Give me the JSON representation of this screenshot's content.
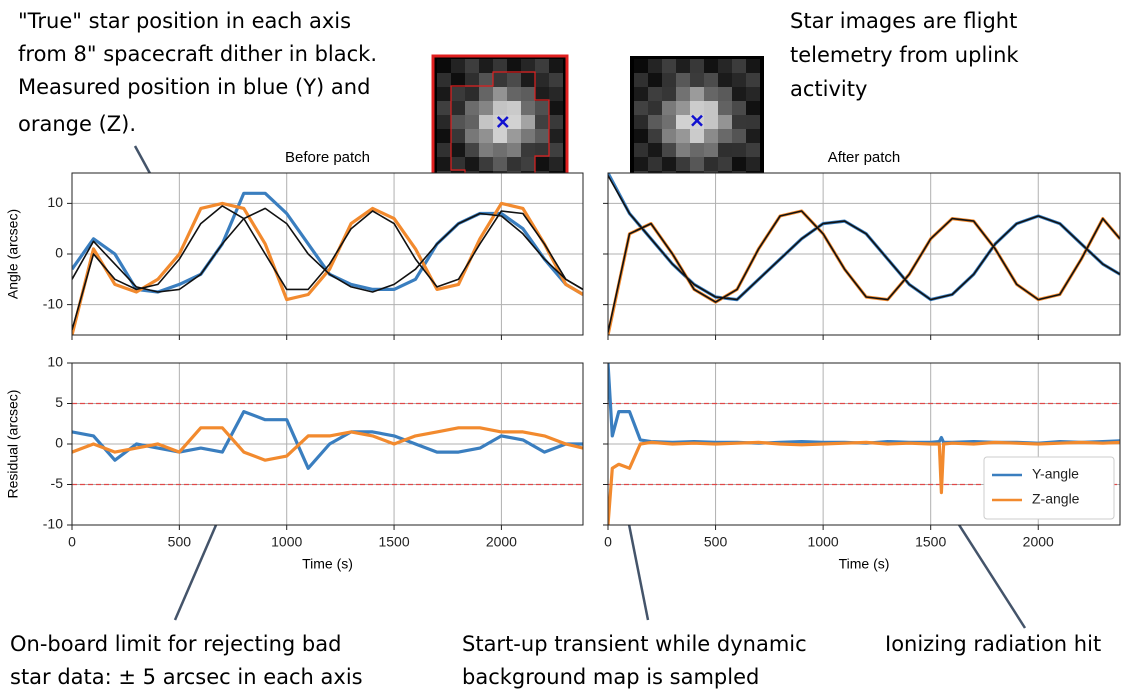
{
  "annotations": [
    {
      "lines": [
        "\"True\" star position in each axis",
        "from 8\" spacecraft dither in black.",
        "Measured position in blue (Y) and",
        "orange (Z)."
      ]
    },
    {
      "lines": [
        "Star images are flight",
        "telemetry from uplink",
        "activity"
      ]
    },
    {
      "lines": [
        "On-board limit for rejecting bad",
        "star data: ± 5 arcsec in each axis"
      ]
    },
    {
      "lines": [
        "Start-up transient while dynamic",
        "background map is sampled"
      ]
    },
    {
      "lines": [
        "Ionizing radiation hit"
      ]
    }
  ],
  "chart_data": [
    {
      "type": "line",
      "title": "Before patch",
      "ylabel": "Angle (arcsec)",
      "x": [
        0,
        100,
        200,
        300,
        400,
        500,
        600,
        700,
        800,
        900,
        1000,
        1100,
        1200,
        1300,
        1400,
        1500,
        1600,
        1700,
        1800,
        1900,
        2000,
        2100,
        2200,
        2300,
        2380
      ],
      "xlim": [
        0,
        2380
      ],
      "xticks": [
        0,
        500,
        1000,
        1500,
        2000
      ],
      "ylim": [
        -16,
        16
      ],
      "yticks": [
        -10,
        0,
        10
      ],
      "grid": true,
      "show_xtick_labels": false,
      "show_ytick_labels": true,
      "series": [
        {
          "color": "#3a7ebf",
          "values": [
            -3,
            3,
            0,
            -7,
            -7.5,
            -6,
            -4,
            2,
            12,
            12,
            8,
            2,
            -4,
            -6,
            -7,
            -7,
            -5,
            2,
            6,
            8,
            8,
            5,
            -1,
            -6,
            -8
          ]
        },
        {
          "color": "#f28a2e",
          "values": [
            -16,
            1,
            -6,
            -7.5,
            -5,
            0,
            9,
            10,
            9,
            2,
            -9,
            -8,
            -3,
            6,
            9,
            7,
            1,
            -7,
            -6,
            3,
            10,
            9,
            2,
            -6,
            -8
          ]
        },
        {
          "color": "#111111",
          "values": [
            -5,
            2.5,
            -2,
            -6.5,
            -7.5,
            -7,
            -4,
            2,
            7,
            9,
            6,
            0,
            -4,
            -6.5,
            -7.5,
            -6,
            -3,
            2,
            6,
            8,
            7.5,
            4,
            -1,
            -5,
            -7
          ]
        },
        {
          "color": "#111111",
          "values": [
            -15,
            0,
            -5,
            -7,
            -6,
            -1,
            6,
            9.5,
            7,
            0,
            -7,
            -7,
            -2,
            5,
            8.5,
            6,
            -1,
            -6.5,
            -5,
            2,
            8.5,
            8,
            2,
            -5,
            -7
          ]
        }
      ]
    },
    {
      "type": "line",
      "title": "After patch",
      "x": [
        0,
        100,
        200,
        300,
        400,
        500,
        600,
        700,
        800,
        900,
        1000,
        1100,
        1200,
        1300,
        1400,
        1500,
        1600,
        1700,
        1800,
        1900,
        2000,
        2100,
        2200,
        2300,
        2380
      ],
      "xlim": [
        0,
        2380
      ],
      "xticks": [
        0,
        500,
        1000,
        1500,
        2000
      ],
      "ylim": [
        -16,
        16
      ],
      "yticks": [
        -10,
        0,
        10
      ],
      "grid": true,
      "show_xtick_labels": false,
      "show_ytick_labels": false,
      "series": [
        {
          "color": "#3a7ebf",
          "values": [
            16,
            8,
            3,
            -2,
            -6,
            -8.5,
            -9,
            -5,
            -1,
            3,
            6,
            6.5,
            4,
            -1,
            -6,
            -9,
            -8,
            -4,
            2,
            6,
            7.5,
            6,
            2,
            -2,
            -4
          ]
        },
        {
          "color": "#f28a2e",
          "values": [
            -16,
            4,
            6,
            0,
            -7,
            -9.5,
            -7,
            1,
            7.5,
            8.5,
            4,
            -3,
            -8.5,
            -9,
            -4,
            3,
            7,
            6.5,
            1,
            -6,
            -9,
            -8,
            -1,
            7,
            3
          ]
        },
        {
          "color": "#111111",
          "values": [
            15.5,
            8,
            3,
            -2,
            -6,
            -8.5,
            -9,
            -5,
            -1,
            3,
            6,
            6.5,
            4,
            -1,
            -6,
            -9,
            -8,
            -4,
            2,
            6,
            7.5,
            6,
            2,
            -2,
            -4
          ]
        },
        {
          "color": "#111111",
          "values": [
            -15.5,
            4,
            6,
            0,
            -7,
            -9.5,
            -7,
            1,
            7.5,
            8.5,
            4,
            -3,
            -8.5,
            -9,
            -4,
            3,
            7,
            6.5,
            1,
            -6,
            -9,
            -8,
            -1,
            7,
            3
          ]
        }
      ]
    },
    {
      "type": "line",
      "xlabel": "Time (s)",
      "ylabel": "Residual (arcsec)",
      "x": [
        0,
        100,
        200,
        300,
        400,
        500,
        600,
        700,
        800,
        900,
        1000,
        1100,
        1200,
        1300,
        1400,
        1500,
        1600,
        1700,
        1800,
        1900,
        2000,
        2100,
        2200,
        2300,
        2380
      ],
      "xlim": [
        0,
        2380
      ],
      "xticks": [
        0,
        500,
        1000,
        1500,
        2000
      ],
      "ylim": [
        -10,
        10
      ],
      "yticks": [
        -10,
        -5,
        0,
        5,
        10
      ],
      "grid": true,
      "show_xtick_labels": true,
      "show_ytick_labels": true,
      "hlines": [
        {
          "value": 5,
          "color": "#e04848"
        },
        {
          "value": -5,
          "color": "#e04848"
        }
      ],
      "series": [
        {
          "color": "#3a7ebf",
          "values": [
            1.5,
            1,
            -2,
            0,
            -0.5,
            -1,
            -0.5,
            -1,
            4,
            3,
            3,
            -3,
            0,
            1.5,
            1.5,
            1,
            0,
            -1,
            -1,
            -0.5,
            1,
            0.5,
            -1,
            0,
            0
          ]
        },
        {
          "color": "#f28a2e",
          "values": [
            -1,
            0,
            -1,
            -0.5,
            0,
            -1,
            2,
            2,
            -1,
            -2,
            -1.5,
            1,
            1,
            1.5,
            1,
            0,
            1,
            1.5,
            2,
            2,
            1.5,
            1.5,
            1,
            0,
            -0.5
          ]
        }
      ]
    },
    {
      "type": "line",
      "xlabel": "Time (s)",
      "x": [
        0,
        20,
        50,
        100,
        150,
        200,
        300,
        400,
        500,
        600,
        700,
        800,
        900,
        1000,
        1100,
        1200,
        1300,
        1400,
        1500,
        1540,
        1550,
        1560,
        1600,
        1700,
        1800,
        1900,
        2000,
        2100,
        2200,
        2300,
        2380
      ],
      "xlim": [
        0,
        2380
      ],
      "xticks": [
        0,
        500,
        1000,
        1500,
        2000
      ],
      "ylim": [
        -10,
        10
      ],
      "yticks": [
        -10,
        -5,
        0,
        5,
        10
      ],
      "grid": true,
      "show_xtick_labels": true,
      "show_ytick_labels": false,
      "hlines": [
        {
          "value": 5,
          "color": "#e04848"
        },
        {
          "value": -5,
          "color": "#e04848"
        }
      ],
      "legend": "lower right",
      "series": [
        {
          "name": "Y-angle",
          "color": "#3a7ebf",
          "values": [
            10,
            1,
            4,
            4,
            0.5,
            0.3,
            0.2,
            0.3,
            0.2,
            0.2,
            0.1,
            0.2,
            0.3,
            0.2,
            0.2,
            0.1,
            0.3,
            0.2,
            0.2,
            0.3,
            0.8,
            0.2,
            0.2,
            0.3,
            0.2,
            0.2,
            0.1,
            0.3,
            0.2,
            0.3,
            0.4
          ]
        },
        {
          "name": "Z-angle",
          "color": "#f28a2e",
          "values": [
            -10,
            -3,
            -2.5,
            -3,
            0,
            0.2,
            0,
            0.1,
            0,
            0.1,
            0.2,
            0,
            -0.1,
            0,
            0.1,
            0.2,
            0,
            0.1,
            0,
            0,
            -6,
            0,
            0.1,
            0,
            0.2,
            0.1,
            0,
            0.1,
            0.2,
            0.1,
            0.2
          ]
        }
      ]
    }
  ]
}
